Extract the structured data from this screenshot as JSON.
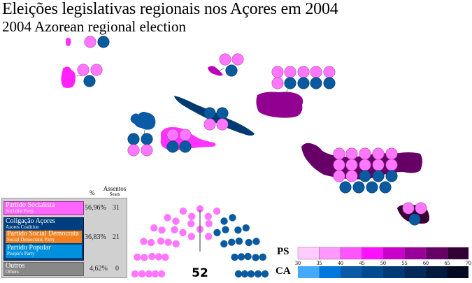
{
  "title": "Eleições legislativas regionais nos Açores em 2004",
  "subtitle": "2004 Azorean regional election",
  "colors": {
    "ps_seat": "#ff77ff",
    "ca_seat": "#0a5aa0"
  },
  "islands": [
    {
      "color": "#ff33ff",
      "ps": 1,
      "ca": 1
    },
    {
      "color": "#ff22ff",
      "ps": 2,
      "ca": 1
    },
    {
      "color": "#bb00bb",
      "ps": 2,
      "ca": 1
    },
    {
      "color": "#003a70",
      "ps": 2,
      "ca": 2
    },
    {
      "color": "#0a5aa6",
      "ps": 2,
      "ca": 2
    },
    {
      "color": "#ff33ff",
      "ps": 2,
      "ca": 2
    },
    {
      "color": "#920092",
      "ps": 6,
      "ca": 4
    },
    {
      "color": "#660066",
      "ps": 12,
      "ca": 7
    },
    {
      "color": "#3a0033",
      "ps": 2,
      "ca": 1
    }
  ],
  "legend": {
    "col_pct": "%",
    "col_seats_pt": "Assentos",
    "col_seats_en": "Seats",
    "parties": [
      {
        "name_pt": "Partido Socialista",
        "name_en": "Socialist Party",
        "pct": "56,96%",
        "seats": "31",
        "color": "#ff66ff"
      },
      {
        "name_pt": "Coligação Açores",
        "name_en": "Azores Coalition",
        "pct": "36,83%",
        "seats": "21",
        "color": "#003f7f"
      },
      {
        "name_pt": "Partido Social Democrata",
        "name_en": "Social Democratic Party",
        "color": "#f08020"
      },
      {
        "name_pt": "Partido Popular",
        "name_en": "People's Party",
        "color": "#0090dd"
      },
      {
        "name_pt": "Outros",
        "name_en": "Others",
        "pct": "4,62%",
        "seats": "0",
        "color": "#888888"
      }
    ]
  },
  "parliament": {
    "total": "52",
    "ps": 31,
    "ca": 21
  },
  "scale": {
    "ps_label": "PS",
    "ca_label": "CA",
    "ticks": [
      "30",
      "35",
      "40",
      "45",
      "50",
      "55",
      "60",
      "65",
      "70"
    ],
    "ps_colors": [
      "#ffccff",
      "#ff99ff",
      "#ff55ff",
      "#ff11ff",
      "#cc00cc",
      "#990099",
      "#660066",
      "#330033"
    ],
    "ca_colors": [
      "#44aaff",
      "#0077dd",
      "#0a5aa6",
      "#004a8f",
      "#003a75",
      "#002a5a",
      "#001a40",
      "#000a20"
    ]
  }
}
